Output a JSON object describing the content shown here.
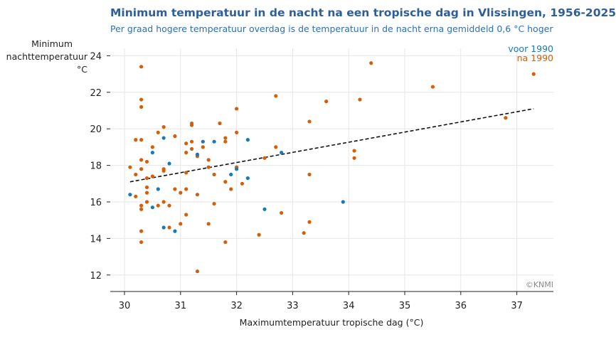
{
  "title": "Minimum temperatuur in de nacht na een tropische dag in Vlissingen, 1956-2025",
  "subtitle": "Per graad hogere temperatuur overdag is de temperatuur in de nacht erna gemiddeld 0,6 °C hoger",
  "credit": "©KNMI",
  "chart_data": {
    "type": "scatter",
    "xlabel": "Maximumtemperatuur tropische dag (°C)",
    "ylabel": [
      "Minimum",
      "nachttemperatuur",
      "°C"
    ],
    "xlim": [
      29.7,
      37.5
    ],
    "ylim": [
      11,
      25
    ],
    "xticks": [
      30,
      31,
      32,
      33,
      34,
      35,
      36,
      37
    ],
    "yticks": [
      12,
      14,
      16,
      18,
      20,
      22,
      24
    ],
    "grid": true,
    "legend_position": "top-right",
    "colors": {
      "voor_1990": "#1a78b4",
      "na_1990": "#d35f0a",
      "trend": "#111111",
      "grid": "#e6e6e6"
    },
    "trendline": {
      "style": "dashed",
      "x": [
        30.1,
        37.3
      ],
      "y": [
        17.1,
        21.1
      ]
    },
    "series": [
      {
        "name": "voor 1990",
        "key": "voor_1990",
        "points": [
          [
            30.1,
            16.4
          ],
          [
            30.5,
            18.7
          ],
          [
            30.5,
            15.7
          ],
          [
            30.6,
            16.7
          ],
          [
            30.7,
            19.5
          ],
          [
            30.7,
            14.6
          ],
          [
            30.8,
            18.1
          ],
          [
            30.9,
            14.4
          ],
          [
            31.3,
            18.6
          ],
          [
            31.4,
            19.3
          ],
          [
            31.6,
            19.3
          ],
          [
            31.9,
            17.5
          ],
          [
            32.0,
            17.8
          ],
          [
            32.2,
            19.4
          ],
          [
            32.2,
            17.3
          ],
          [
            32.5,
            15.6
          ],
          [
            32.8,
            18.7
          ],
          [
            33.9,
            16.0
          ]
        ]
      },
      {
        "name": "na 1990",
        "key": "na_1990",
        "points": [
          [
            30.1,
            17.9
          ],
          [
            30.2,
            17.5
          ],
          [
            30.2,
            19.4
          ],
          [
            30.2,
            16.3
          ],
          [
            30.3,
            23.4
          ],
          [
            30.3,
            21.6
          ],
          [
            30.3,
            21.2
          ],
          [
            30.3,
            19.4
          ],
          [
            30.3,
            18.3
          ],
          [
            30.3,
            17.8
          ],
          [
            30.3,
            15.8
          ],
          [
            30.3,
            15.6
          ],
          [
            30.3,
            14.4
          ],
          [
            30.3,
            13.8
          ],
          [
            30.4,
            18.2
          ],
          [
            30.4,
            17.3
          ],
          [
            30.4,
            16.8
          ],
          [
            30.4,
            16.5
          ],
          [
            30.4,
            16.0
          ],
          [
            30.5,
            19.0
          ],
          [
            30.5,
            17.4
          ],
          [
            30.6,
            19.8
          ],
          [
            30.6,
            15.8
          ],
          [
            30.7,
            20.1
          ],
          [
            30.7,
            17.8
          ],
          [
            30.7,
            17.7
          ],
          [
            30.7,
            16.0
          ],
          [
            30.8,
            15.8
          ],
          [
            30.8,
            14.6
          ],
          [
            30.9,
            19.6
          ],
          [
            30.9,
            16.7
          ],
          [
            31.0,
            16.5
          ],
          [
            31.0,
            14.8
          ],
          [
            31.1,
            19.2
          ],
          [
            31.1,
            18.7
          ],
          [
            31.1,
            17.6
          ],
          [
            31.1,
            16.7
          ],
          [
            31.1,
            15.3
          ],
          [
            31.2,
            20.3
          ],
          [
            31.2,
            20.2
          ],
          [
            31.2,
            19.3
          ],
          [
            31.2,
            18.9
          ],
          [
            31.3,
            18.5
          ],
          [
            31.3,
            16.4
          ],
          [
            31.3,
            12.2
          ],
          [
            31.4,
            19.0
          ],
          [
            31.5,
            18.3
          ],
          [
            31.5,
            17.9
          ],
          [
            31.5,
            14.8
          ],
          [
            31.6,
            17.5
          ],
          [
            31.6,
            15.9
          ],
          [
            31.7,
            20.3
          ],
          [
            31.8,
            19.5
          ],
          [
            31.8,
            19.3
          ],
          [
            31.8,
            17.1
          ],
          [
            31.8,
            13.8
          ],
          [
            31.9,
            16.7
          ],
          [
            32.0,
            21.1
          ],
          [
            32.0,
            19.8
          ],
          [
            32.0,
            17.9
          ],
          [
            32.1,
            17.0
          ],
          [
            32.4,
            14.2
          ],
          [
            32.5,
            18.4
          ],
          [
            32.7,
            21.8
          ],
          [
            32.7,
            19.0
          ],
          [
            32.8,
            15.4
          ],
          [
            33.2,
            14.3
          ],
          [
            33.3,
            20.4
          ],
          [
            33.3,
            17.5
          ],
          [
            33.3,
            14.9
          ],
          [
            33.6,
            21.5
          ],
          [
            34.1,
            18.8
          ],
          [
            34.1,
            18.4
          ],
          [
            34.2,
            21.6
          ],
          [
            34.4,
            23.6
          ],
          [
            35.5,
            22.3
          ],
          [
            36.8,
            20.6
          ],
          [
            37.3,
            23.0
          ]
        ]
      }
    ]
  }
}
